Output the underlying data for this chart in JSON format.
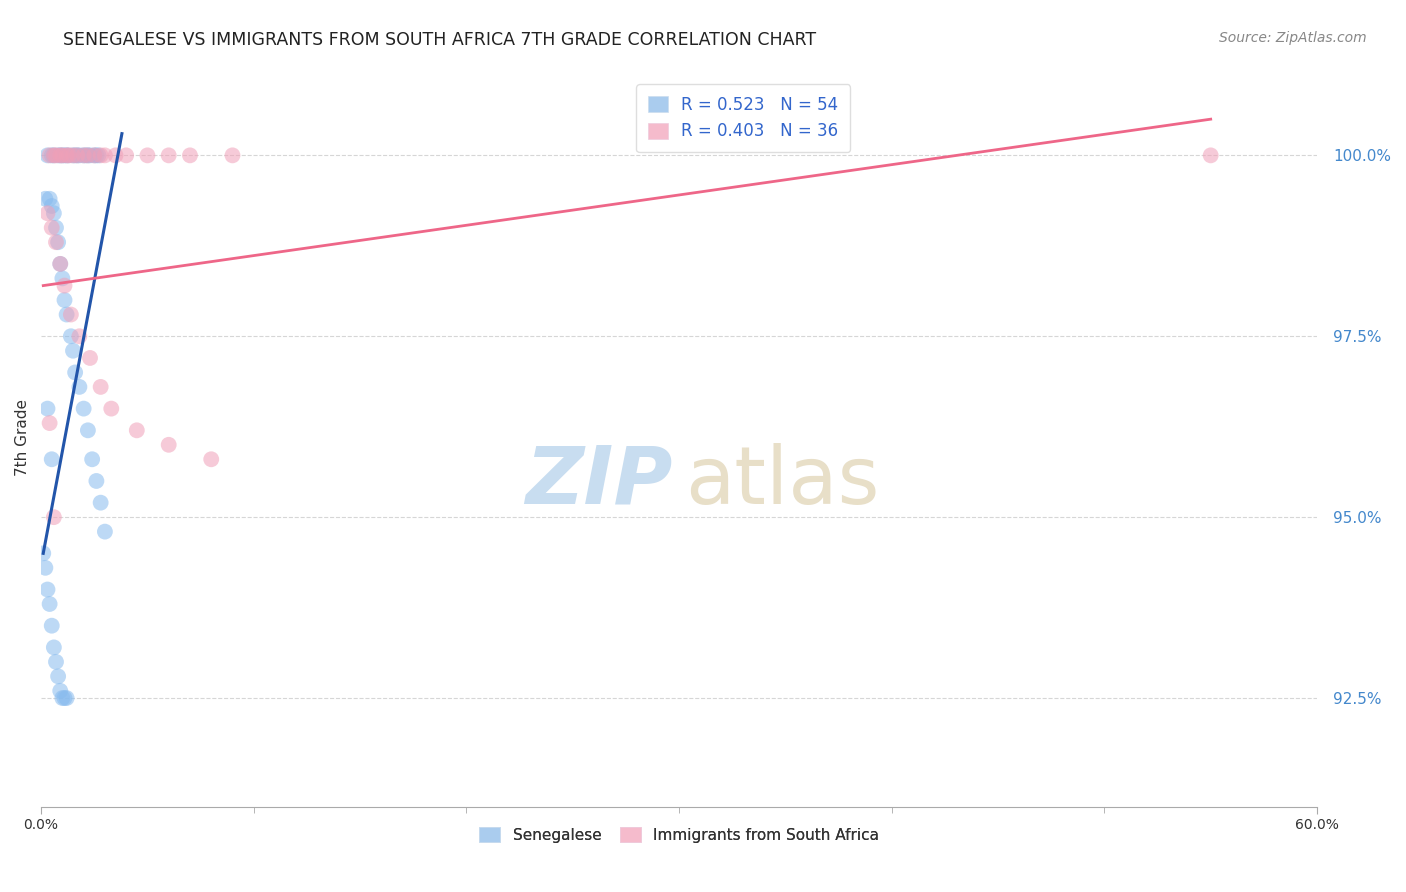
{
  "title": "SENEGALESE VS IMMIGRANTS FROM SOUTH AFRICA 7TH GRADE CORRELATION CHART",
  "source": "Source: ZipAtlas.com",
  "ylabel": "7th Grade",
  "yticks": [
    92.5,
    95.0,
    97.5,
    100.0
  ],
  "ytick_labels": [
    "92.5%",
    "95.0%",
    "97.5%",
    "100.0%"
  ],
  "xlim": [
    0.0,
    60.0
  ],
  "ylim": [
    91.0,
    101.2
  ],
  "legend_labels_bottom": [
    "Senegalese",
    "Immigrants from South Africa"
  ],
  "background_color": "#ffffff",
  "grid_color": "#cccccc",
  "blue_color": "#88bbee",
  "pink_color": "#f0a0b8",
  "blue_line_color": "#2255aa",
  "pink_line_color": "#ee6688",
  "blue_line_x": [
    0.1,
    3.8
  ],
  "blue_line_y": [
    94.5,
    100.3
  ],
  "pink_line_x": [
    0.1,
    55.0
  ],
  "pink_line_y": [
    98.2,
    100.5
  ],
  "senegalese_x": [
    0.3,
    0.5,
    0.6,
    0.8,
    0.9,
    1.0,
    1.1,
    1.2,
    1.3,
    1.5,
    1.6,
    1.7,
    1.8,
    2.0,
    2.1,
    2.2,
    2.3,
    2.5,
    2.6,
    2.7,
    0.2,
    0.4,
    0.5,
    0.6,
    0.7,
    0.8,
    0.9,
    1.0,
    1.1,
    1.2,
    1.4,
    1.5,
    1.6,
    1.8,
    2.0,
    2.2,
    2.4,
    2.6,
    2.8,
    3.0,
    0.1,
    0.2,
    0.3,
    0.4,
    0.5,
    0.6,
    0.7,
    0.8,
    0.9,
    1.0,
    1.1,
    1.2,
    0.3,
    0.5
  ],
  "senegalese_y": [
    100.0,
    100.0,
    100.0,
    100.0,
    100.0,
    100.0,
    100.0,
    100.0,
    100.0,
    100.0,
    100.0,
    100.0,
    100.0,
    100.0,
    100.0,
    100.0,
    100.0,
    100.0,
    100.0,
    100.0,
    99.4,
    99.4,
    99.3,
    99.2,
    99.0,
    98.8,
    98.5,
    98.3,
    98.0,
    97.8,
    97.5,
    97.3,
    97.0,
    96.8,
    96.5,
    96.2,
    95.8,
    95.5,
    95.2,
    94.8,
    94.5,
    94.3,
    94.0,
    93.8,
    93.5,
    93.2,
    93.0,
    92.8,
    92.6,
    92.5,
    92.5,
    92.5,
    96.5,
    95.8
  ],
  "immigrants_x": [
    0.4,
    0.6,
    0.7,
    0.9,
    1.0,
    1.2,
    1.3,
    1.5,
    1.7,
    2.0,
    2.2,
    2.5,
    2.8,
    3.0,
    3.5,
    4.0,
    5.0,
    6.0,
    7.0,
    9.0,
    0.3,
    0.5,
    0.7,
    0.9,
    1.1,
    1.4,
    1.8,
    2.3,
    2.8,
    3.3,
    4.5,
    6.0,
    8.0,
    0.4,
    0.6,
    55.0
  ],
  "immigrants_y": [
    100.0,
    100.0,
    100.0,
    100.0,
    100.0,
    100.0,
    100.0,
    100.0,
    100.0,
    100.0,
    100.0,
    100.0,
    100.0,
    100.0,
    100.0,
    100.0,
    100.0,
    100.0,
    100.0,
    100.0,
    99.2,
    99.0,
    98.8,
    98.5,
    98.2,
    97.8,
    97.5,
    97.2,
    96.8,
    96.5,
    96.2,
    96.0,
    95.8,
    96.3,
    95.0,
    100.0
  ]
}
